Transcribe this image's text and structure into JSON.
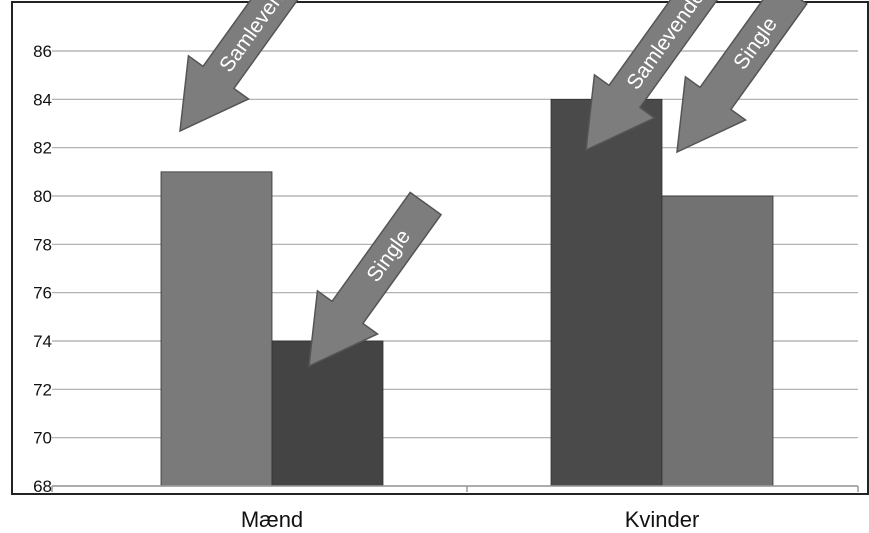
{
  "chart_data": {
    "type": "bar",
    "categories": [
      "Mænd",
      "Kvinder"
    ],
    "series": [
      {
        "values": [
          81,
          84
        ]
      },
      {
        "values": [
          74,
          80
        ]
      }
    ],
    "ylim": [
      68,
      86
    ],
    "yticks": [
      68,
      70,
      72,
      74,
      76,
      78,
      80,
      82,
      84,
      86
    ],
    "grid": true,
    "annotations": [
      {
        "text": "Samlevende",
        "category": "Mænd",
        "points_to": 81
      },
      {
        "text": "Single",
        "category": "Mænd",
        "points_to": 74
      },
      {
        "text": "Samlevende",
        "category": "Kvinder",
        "points_to": 84
      },
      {
        "text": "Single",
        "category": "Kvinder",
        "points_to": 80
      }
    ],
    "colors": {
      "bars": [
        [
          "#7a7a7a",
          "#444444"
        ],
        [
          "#4a4a4a",
          "#727272"
        ]
      ],
      "arrow_fill": "#7d7d7d",
      "arrow_stroke": "#555555",
      "grid": "#a9a9a9",
      "frame": "#222222"
    }
  }
}
